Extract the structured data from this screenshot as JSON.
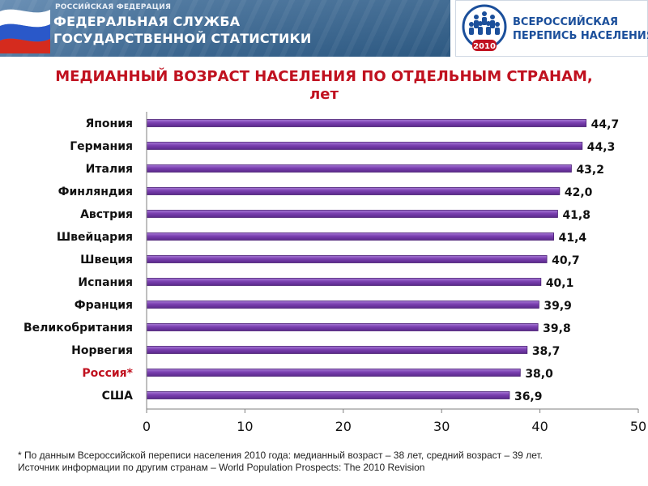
{
  "header": {
    "agency_small": "РОССИЙСКАЯ ФЕДЕРАЦИЯ",
    "agency_line1": "ФЕДЕРАЛЬНАЯ СЛУЖБА",
    "agency_line2": "ГОСУДАРСТВЕННОЙ СТАТИСТИКИ",
    "census_line1": "ВСЕРОССИЙСКАЯ",
    "census_line2": "ПЕРЕПИСЬ НАСЕЛЕНИЯ",
    "census_year": "2010"
  },
  "footnote": {
    "line1": "* По данным Всероссийской переписи населения 2010 года: медианный возраст – 38 лет, средний возраст – 39 лет.",
    "line2": "Источник информации по другим странам – World Population Prospects: The 2010 Revision"
  },
  "chart_data": {
    "type": "bar",
    "orientation": "horizontal",
    "title": "МЕДИАННЫЙ ВОЗРАСТ НАСЕЛЕНИЯ ПО ОТДЕЛЬНЫМ СТРАНАМ, лет",
    "categories": [
      "Япония",
      "Германия",
      "Италия",
      "Финляндия",
      "Австрия",
      "Швейцария",
      "Швеция",
      "Испания",
      "Франция",
      "Великобритания",
      "Норвегия",
      "Россия*",
      "США"
    ],
    "values": [
      44.7,
      44.3,
      43.2,
      42.0,
      41.8,
      41.4,
      40.7,
      40.1,
      39.9,
      39.8,
      38.7,
      38.0,
      36.9
    ],
    "value_labels": [
      "44,7",
      "44,3",
      "43,2",
      "42,0",
      "41,8",
      "41,4",
      "40,7",
      "40,1",
      "39,9",
      "39,8",
      "38,7",
      "38,0",
      "36,9"
    ],
    "highlight_category": "Россия*",
    "xlim": [
      0,
      50
    ],
    "xticks": [
      0,
      10,
      20,
      30,
      40,
      50
    ],
    "bar_color": "#7a3fb0",
    "bar_edge_color": "#4a1f75",
    "highlight_label_color": "#c0111f",
    "grid": false,
    "legend": "none"
  }
}
